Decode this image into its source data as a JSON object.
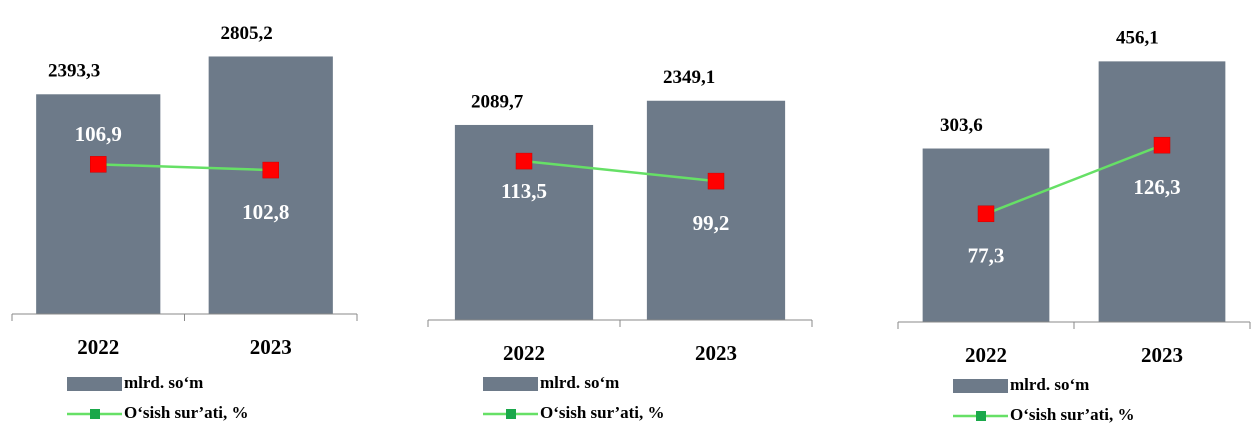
{
  "chart_data": [
    {
      "type": "bar",
      "categories": [
        "2022",
        "2023"
      ],
      "ylim": [
        0,
        3050
      ],
      "y2lim": [
        0,
        200
      ],
      "series": [
        {
          "name": "mlrd. so‘m",
          "color": "#6d7a89",
          "values": [
            2393.3,
            2805.2
          ],
          "value_labels": [
            "2393,3",
            "2805,2"
          ]
        },
        {
          "name": "O‘sish sur’ati, %",
          "type": "line",
          "axis": "y2",
          "color": "#66e066",
          "marker_color": "#ff0000",
          "values": [
            106.9,
            102.8
          ],
          "value_labels": [
            "106,9",
            "102,8"
          ]
        }
      ]
    },
    {
      "type": "bar",
      "categories": [
        "2022",
        "2023"
      ],
      "ylim": [
        0,
        3000
      ],
      "y2lim": [
        0,
        200
      ],
      "series": [
        {
          "name": "mlrd. so‘m",
          "color": "#6d7a89",
          "values": [
            2089.7,
            2349.1
          ],
          "value_labels": [
            "2089,7",
            "2349,1"
          ]
        },
        {
          "name": "O‘sish sur’ati, %",
          "type": "line",
          "axis": "y2",
          "color": "#66e066",
          "marker_color": "#ff0000",
          "values": [
            113.5,
            99.2
          ],
          "value_labels": [
            "113,5",
            "99,2"
          ]
        }
      ]
    },
    {
      "type": "bar",
      "categories": [
        "2022",
        "2023"
      ],
      "ylim": [
        0,
        490
      ],
      "y2lim": [
        0,
        200
      ],
      "series": [
        {
          "name": "mlrd. so‘m",
          "color": "#6d7a89",
          "values": [
            303.6,
            456.1
          ],
          "value_labels": [
            "303,6",
            "456,1"
          ]
        },
        {
          "name": "O‘sish sur’ati, %",
          "type": "line",
          "axis": "y2",
          "color": "#66e066",
          "marker_color": "#ff0000",
          "values": [
            77.3,
            126.3
          ],
          "value_labels": [
            "77,3",
            "126,3"
          ]
        }
      ]
    }
  ]
}
